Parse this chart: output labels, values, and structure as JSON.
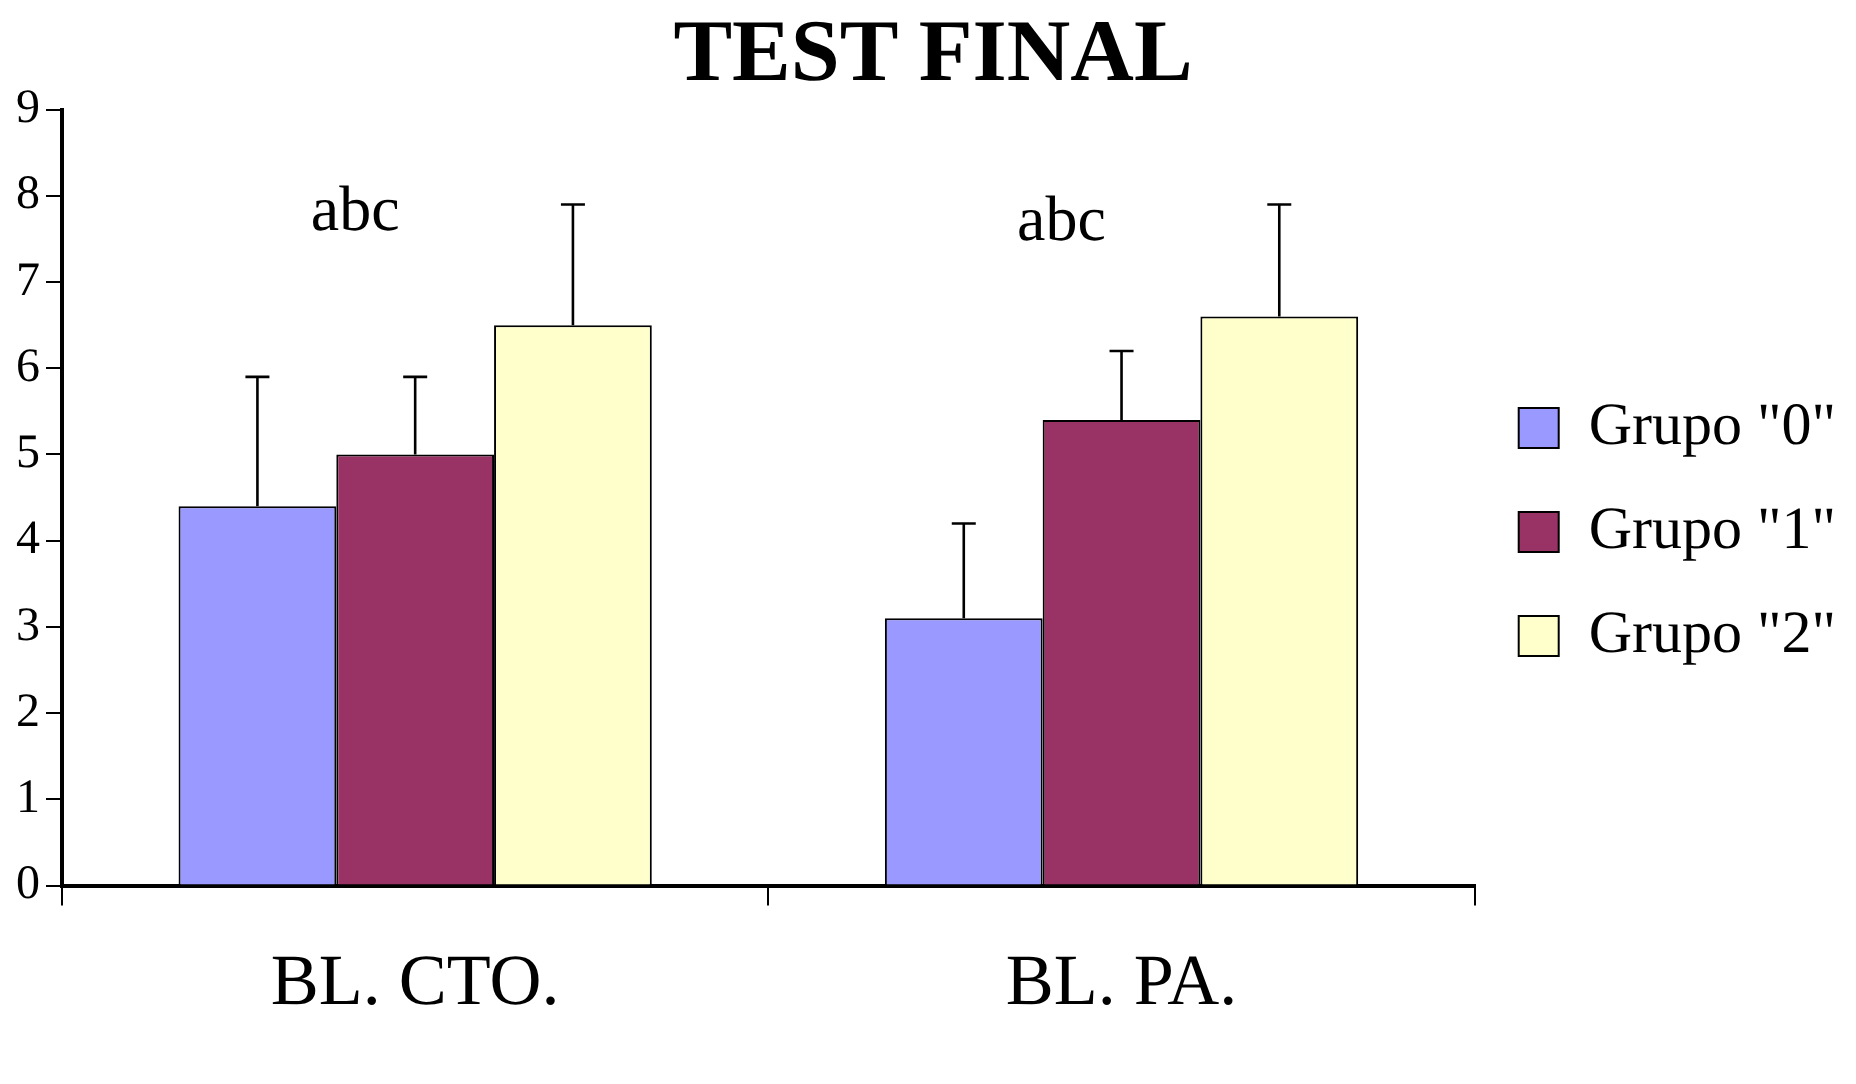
{
  "chart_data": {
    "type": "bar",
    "title": "TEST FINAL",
    "categories": [
      "BL. CTO.",
      "BL. PA."
    ],
    "series": [
      {
        "name": "Grupo \"0\"",
        "color": "#9999ff",
        "values": [
          4.4,
          3.1
        ],
        "errors": [
          [
            4.4,
            5.9
          ],
          [
            3.1,
            4.2
          ]
        ]
      },
      {
        "name": "Grupo \"1\"",
        "color": "#993366",
        "values": [
          5.0,
          5.4
        ],
        "errors": [
          [
            5.0,
            5.9
          ],
          [
            5.4,
            6.2
          ]
        ]
      },
      {
        "name": "Grupo \"2\"",
        "color": "#ffffcc",
        "values": [
          6.5,
          6.6
        ],
        "errors": [
          [
            6.5,
            7.9
          ],
          [
            6.6,
            7.9
          ]
        ]
      }
    ],
    "ylim": [
      0,
      9
    ],
    "yticks": [
      0,
      1,
      2,
      3,
      4,
      5,
      6,
      7,
      8,
      9
    ],
    "grid": false,
    "legend": "right",
    "annotations": [
      "abc",
      "abc"
    ]
  }
}
